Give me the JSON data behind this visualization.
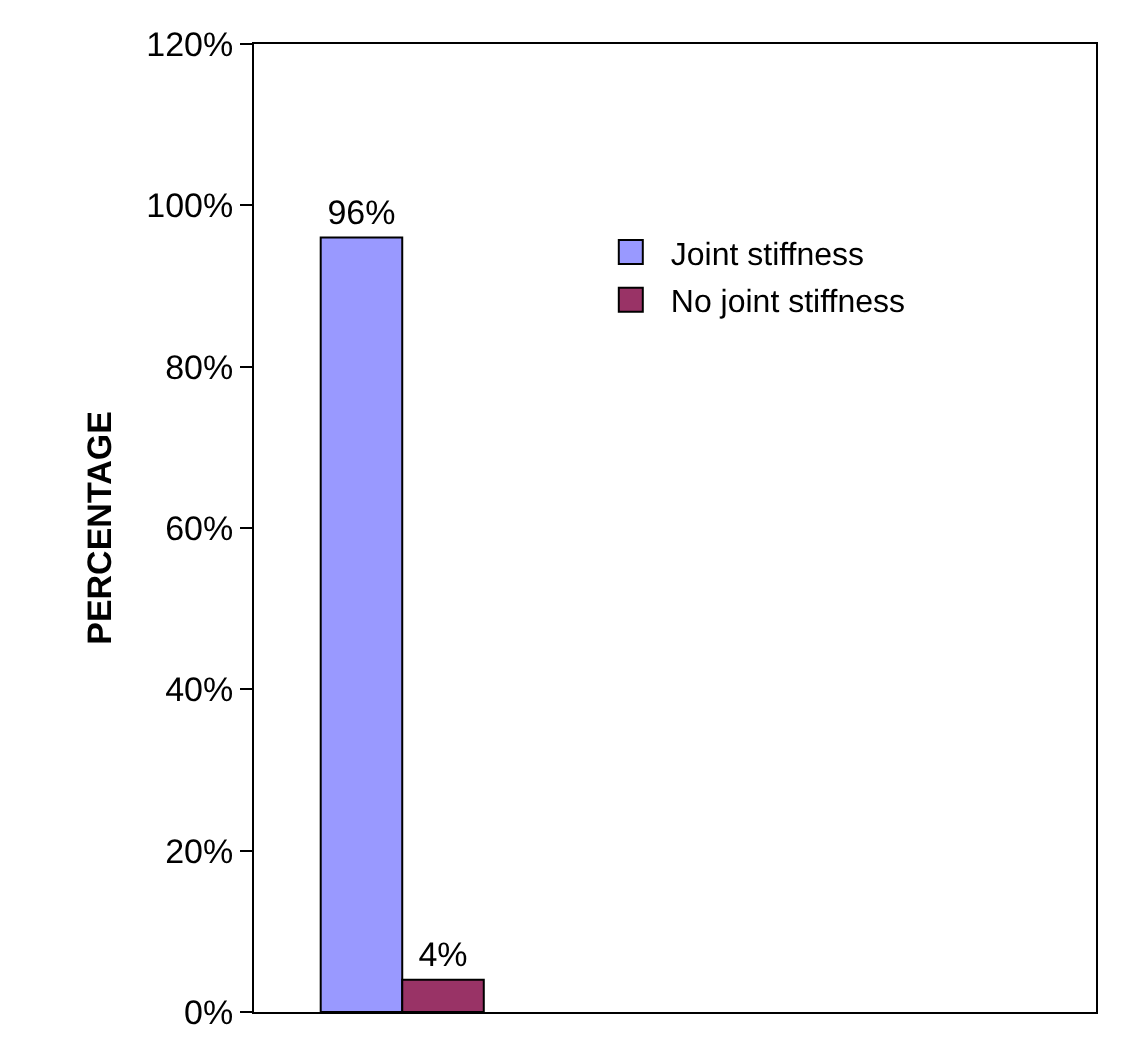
{
  "chart_data": {
    "type": "bar",
    "ylabel": "PERCENTAGE",
    "categories": [
      null
    ],
    "series": [
      {
        "name": "Joint stiffness",
        "color": "#9999ff",
        "values": [
          96
        ],
        "value_labels": [
          "96%"
        ]
      },
      {
        "name": "No joint stiffness",
        "color": "#993366",
        "values": [
          4
        ],
        "value_labels": [
          "4%"
        ]
      }
    ],
    "ylim": [
      0,
      120
    ],
    "yticks": [
      {
        "value": 0,
        "label": "0%"
      },
      {
        "value": 20,
        "label": "20%"
      },
      {
        "value": 40,
        "label": "40%"
      },
      {
        "value": 60,
        "label": "60%"
      },
      {
        "value": 80,
        "label": "80%"
      },
      {
        "value": 100,
        "label": "100%"
      },
      {
        "value": 120,
        "label": "120%"
      }
    ],
    "grid": false,
    "legend": "top right"
  }
}
